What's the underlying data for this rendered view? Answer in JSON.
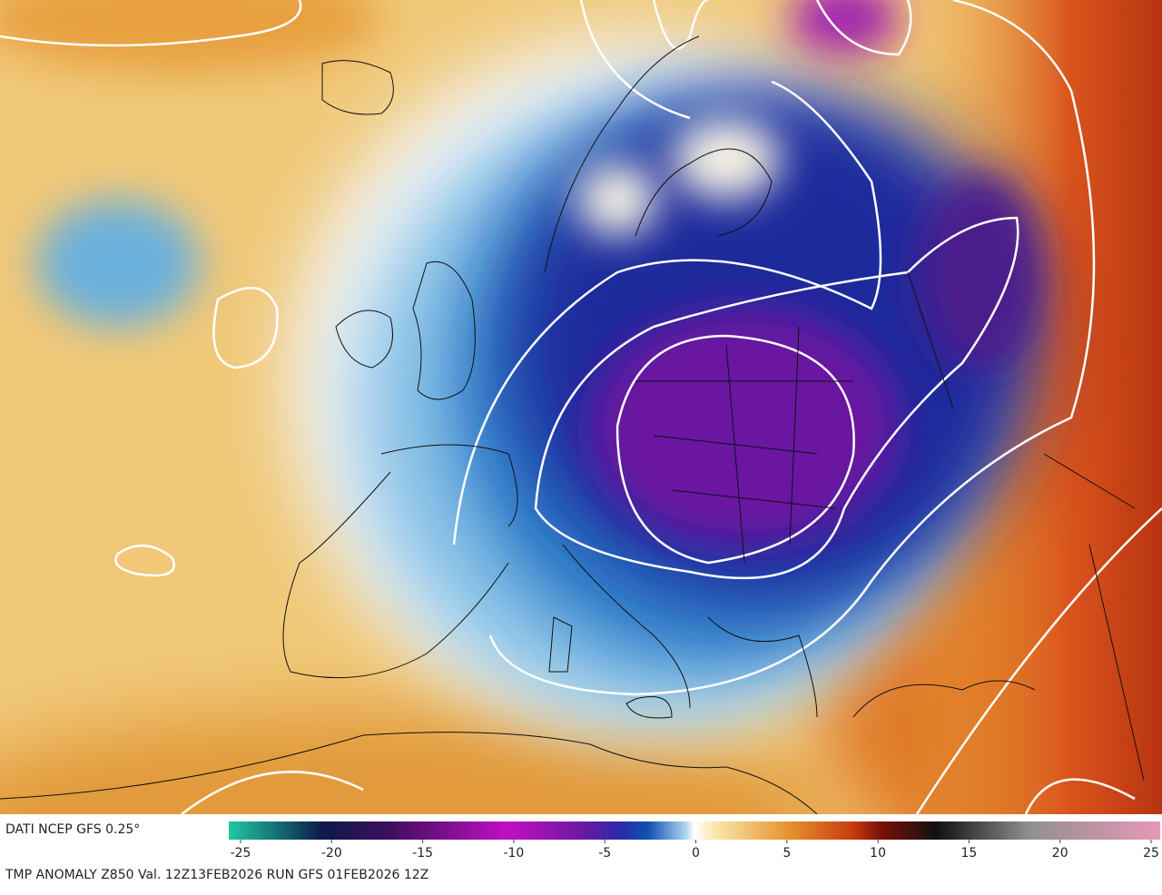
{
  "header": {
    "source": "DATI NCEP GFS 0.25°"
  },
  "colorbar": {
    "lim": [
      -25,
      25
    ],
    "ticks": [
      -25,
      -20,
      -15,
      -10,
      -5,
      0,
      5,
      10,
      15,
      20,
      25
    ]
  },
  "footer": {
    "caption": "TMP ANOMALY Z850 Val. 12Z13FEB2026 RUN GFS 01FEB2026 12Z"
  }
}
